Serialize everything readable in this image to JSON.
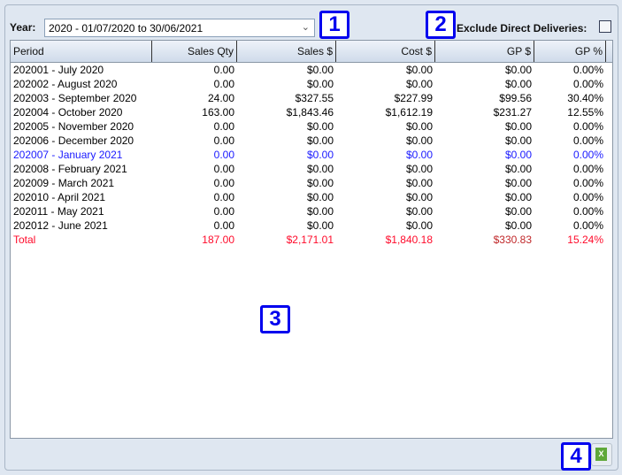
{
  "filters": {
    "year_label": "Year:",
    "year_value": "2020 - 01/07/2020 to 30/06/2021",
    "exclude_label": "Exclude Direct Deliveries:",
    "exclude_checked": false
  },
  "table": {
    "columns": [
      "Period",
      "Sales Qty",
      "Sales $",
      "Cost $",
      "GP $",
      "GP %"
    ],
    "rows": [
      [
        "202001 - July 2020",
        "0.00",
        "$0.00",
        "$0.00",
        "$0.00",
        "0.00%"
      ],
      [
        "202002 - August 2020",
        "0.00",
        "$0.00",
        "$0.00",
        "$0.00",
        "0.00%"
      ],
      [
        "202003 - September 2020",
        "24.00",
        "$327.55",
        "$227.99",
        "$99.56",
        "30.40%"
      ],
      [
        "202004 - October 2020",
        "163.00",
        "$1,843.46",
        "$1,612.19",
        "$231.27",
        "12.55%"
      ],
      [
        "202005 - November 2020",
        "0.00",
        "$0.00",
        "$0.00",
        "$0.00",
        "0.00%"
      ],
      [
        "202006 - December 2020",
        "0.00",
        "$0.00",
        "$0.00",
        "$0.00",
        "0.00%"
      ],
      [
        "202007 - January 2021",
        "0.00",
        "$0.00",
        "$0.00",
        "$0.00",
        "0.00%"
      ],
      [
        "202008 - February 2021",
        "0.00",
        "$0.00",
        "$0.00",
        "$0.00",
        "0.00%"
      ],
      [
        "202009 - March 2021",
        "0.00",
        "$0.00",
        "$0.00",
        "$0.00",
        "0.00%"
      ],
      [
        "202010 - April 2021",
        "0.00",
        "$0.00",
        "$0.00",
        "$0.00",
        "0.00%"
      ],
      [
        "202011 - May 2021",
        "0.00",
        "$0.00",
        "$0.00",
        "$0.00",
        "0.00%"
      ],
      [
        "202012 - June 2021",
        "0.00",
        "$0.00",
        "$0.00",
        "$0.00",
        "0.00%"
      ]
    ],
    "highlight_row": 6,
    "total": [
      "Total",
      "187.00",
      "$2,171.01",
      "$1,840.18",
      "$330.83",
      "15.24%"
    ]
  },
  "colors": {
    "highlight": "#1a1aff",
    "total": "#ff0a2a",
    "gp_total": "#c0282a"
  },
  "badges": [
    "1",
    "2",
    "3",
    "4"
  ],
  "export": {
    "icon": "excel-icon",
    "glyph": "X"
  }
}
